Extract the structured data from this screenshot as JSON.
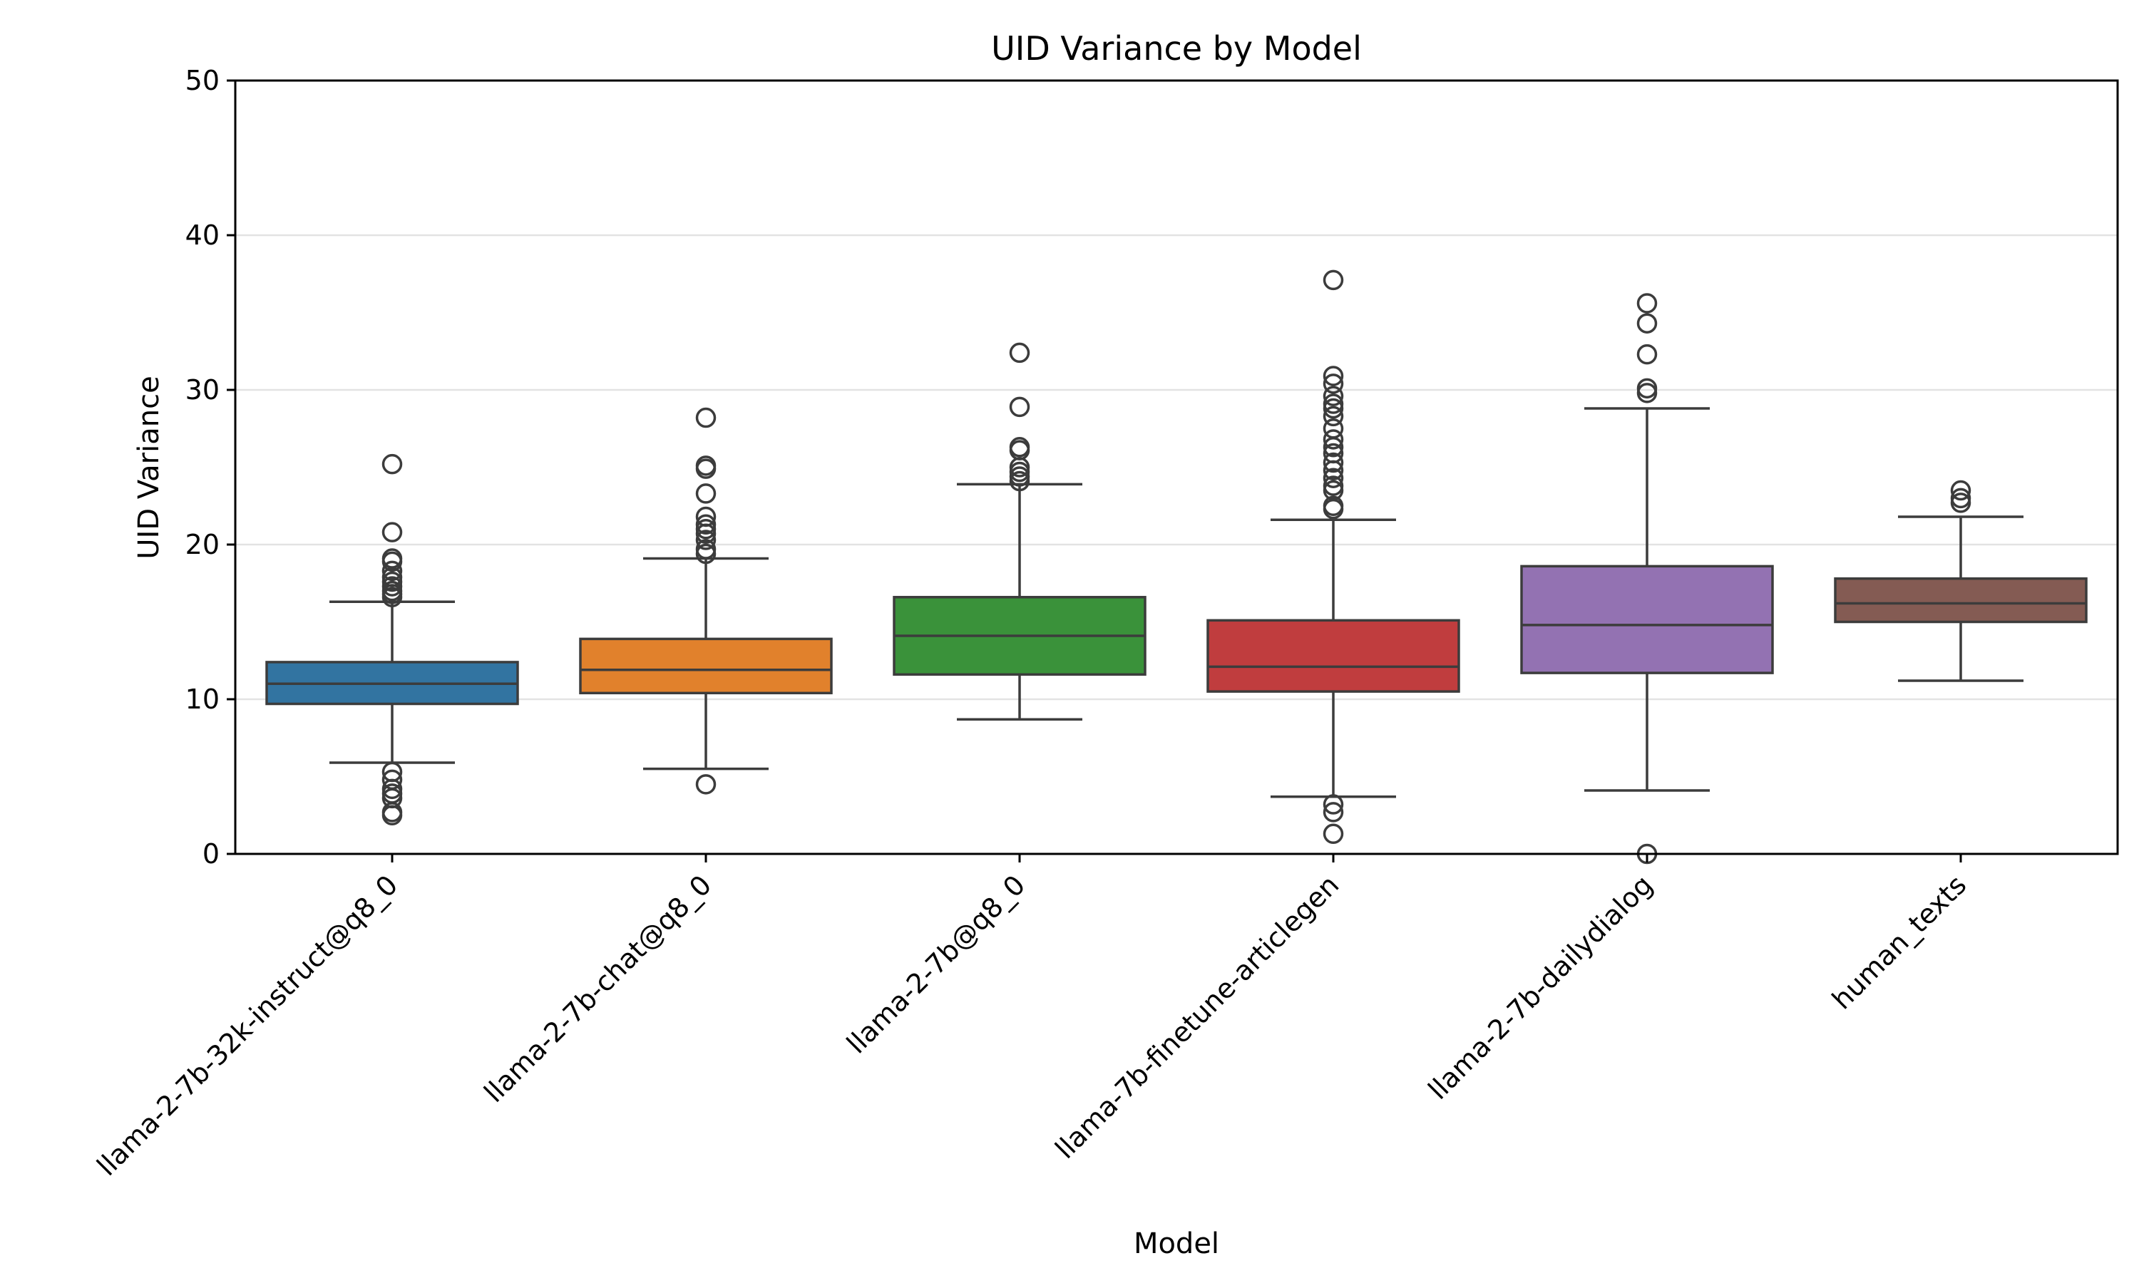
{
  "chart_data": {
    "type": "box",
    "title": "UID Variance by Model",
    "xlabel": "Model",
    "ylabel": "UID Variance",
    "ylim": [
      0,
      50
    ],
    "yticks": [
      0,
      10,
      20,
      30,
      40,
      50
    ],
    "grid": "y",
    "categories": [
      "llama-2-7b-32k-instruct@q8_0",
      "llama-2-7b-chat@q8_0",
      "llama-2-7b@q8_0",
      "llama-7b-finetune-articlegen",
      "llama-2-7b-dailydialog",
      "human_texts"
    ],
    "colors": [
      "#3274a1",
      "#e1812c",
      "#3a923a",
      "#c03d3e",
      "#9372b2",
      "#845b53"
    ],
    "boxes": [
      {
        "whislo": 5.9,
        "q1": 9.7,
        "med": 11.0,
        "q3": 12.4,
        "whishi": 16.3,
        "fliers": [
          25.2,
          20.8,
          19.1,
          18.9,
          18.3,
          17.9,
          17.6,
          17.3,
          17.0,
          16.8,
          16.6,
          5.3,
          4.8,
          4.2,
          3.9,
          3.6,
          2.7,
          2.5
        ]
      },
      {
        "whislo": 5.5,
        "q1": 10.4,
        "med": 11.9,
        "q3": 13.9,
        "whishi": 19.1,
        "fliers": [
          28.2,
          25.1,
          24.9,
          23.3,
          21.8,
          21.3,
          21.0,
          20.7,
          20.3,
          19.7,
          19.4,
          4.5
        ]
      },
      {
        "whislo": 8.7,
        "q1": 11.6,
        "med": 14.1,
        "q3": 16.6,
        "whishi": 23.9,
        "fliers": [
          32.4,
          28.9,
          26.3,
          26.1,
          25.0,
          24.7,
          24.4,
          24.1
        ]
      },
      {
        "whislo": 3.7,
        "q1": 10.5,
        "med": 12.1,
        "q3": 15.1,
        "whishi": 21.6,
        "fliers": [
          37.1,
          30.9,
          30.4,
          29.6,
          29.1,
          28.8,
          28.3,
          27.5,
          26.8,
          26.3,
          25.9,
          25.3,
          24.8,
          24.3,
          23.8,
          23.5,
          22.5,
          22.3,
          3.2,
          2.7,
          1.3
        ]
      },
      {
        "whislo": 4.1,
        "q1": 11.7,
        "med": 14.8,
        "q3": 18.6,
        "whishi": 28.8,
        "fliers": [
          35.6,
          34.3,
          32.3,
          30.1,
          29.8,
          0.0
        ]
      },
      {
        "whislo": 11.2,
        "q1": 15.0,
        "med": 16.2,
        "q3": 17.8,
        "whishi": 21.8,
        "fliers": [
          23.5,
          23.0,
          22.7
        ]
      }
    ]
  }
}
